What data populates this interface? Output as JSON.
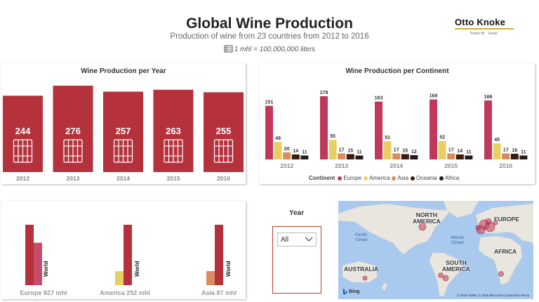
{
  "header": {
    "title": "Global Wine Production",
    "subtitle": "Production of wine from 23 countries  from 2012 to 2016",
    "unit_note": "1 mhl = 100,000,000 liters"
  },
  "logo": {
    "name": "Otto Knoke",
    "sub_left": "Power BI",
    "sub_right": "Excel"
  },
  "charts": {
    "per_year": {
      "title": "Wine Production per Year"
    },
    "per_continent": {
      "title": "Wine Production per Continent"
    }
  },
  "legend": {
    "title": "Continent",
    "items": [
      "Europe",
      "America",
      "Asia",
      "Oceania",
      "Africa"
    ]
  },
  "slicer": {
    "label": "Year",
    "selected": "All"
  },
  "map": {
    "labels": {
      "north_america": "NORTH\nAMERICA",
      "europe": "EUROPE",
      "africa": "AFRICA",
      "south_america": "SOUTH\nAMERICA",
      "australia": "AUSTRALIA",
      "pacific": "Pacific\nOcean",
      "atlantic": "Atlantic\nOcean"
    },
    "bing": "Bing",
    "credit": "© 2018 HERE, © 2018 Microsoft Corporation  Terms"
  },
  "colors": {
    "europe": "#c0395a",
    "america": "#e8cf64",
    "asia": "#d98d5f",
    "oceania": "#3a1d10",
    "africa": "#231a1a",
    "year_bar": "#b5323d",
    "world_bar": "#b5323d"
  },
  "chart_data": [
    {
      "type": "bar",
      "title": "Wine Production per Year",
      "categories": [
        "2012",
        "2013",
        "2014",
        "2015",
        "2016"
      ],
      "values": [
        244,
        276,
        257,
        263,
        255
      ],
      "ylim": [
        0,
        276
      ]
    },
    {
      "type": "bar",
      "title": "Wine Production per Continent",
      "categories": [
        "2012",
        "2013",
        "2014",
        "2015",
        "2016"
      ],
      "series": [
        {
          "name": "Europe",
          "values": [
            151,
            178,
            163,
            169,
            166
          ]
        },
        {
          "name": "America",
          "values": [
            49,
            55,
            51,
            52,
            45
          ]
        },
        {
          "name": "Asia",
          "values": [
            20,
            17,
            17,
            17,
            17
          ]
        },
        {
          "name": "Oceania",
          "values": [
            14,
            15,
            15,
            14,
            16
          ]
        },
        {
          "name": "Africa",
          "values": [
            11,
            11,
            12,
            11,
            11
          ]
        }
      ],
      "ylim": [
        0,
        178
      ]
    },
    {
      "type": "bar",
      "categories": [
        "Europe 827 mhl",
        "America 252 mhl",
        "Asia 87 mhl"
      ],
      "series": [
        {
          "name": "World",
          "values": [
            1295,
            1295,
            1295
          ]
        },
        {
          "name": "Continent",
          "values": [
            827,
            252,
            87
          ]
        }
      ],
      "bar_label": "World"
    }
  ]
}
